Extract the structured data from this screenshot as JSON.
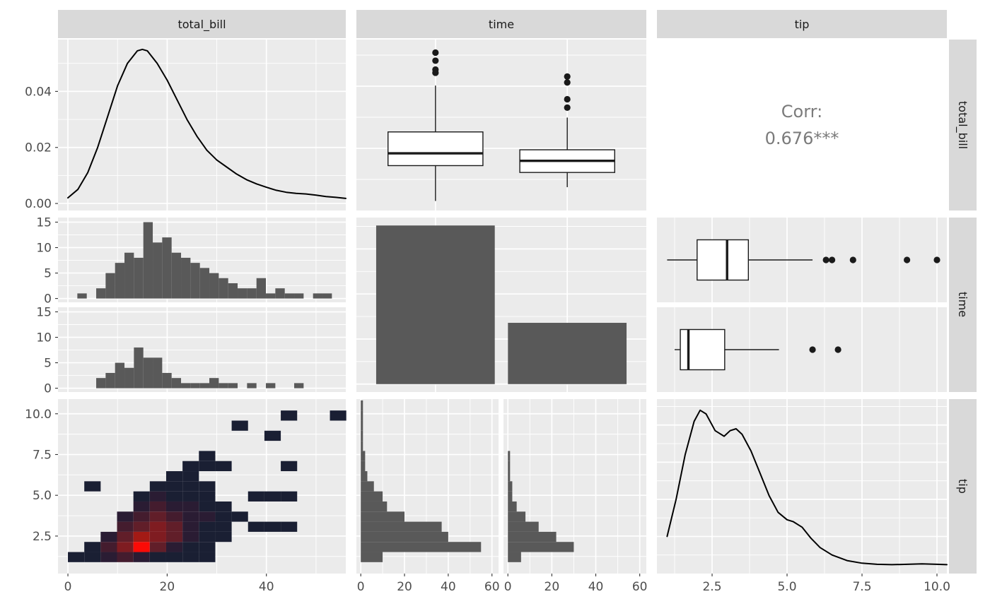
{
  "figure": {
    "bg": "#FFFFFF",
    "panel_bg": "#EBEBEB",
    "strip_bg": "#D9D9D9",
    "strip_text_color": "#1A1A1A",
    "grid_color": "#FFFFFF",
    "tick_label_color": "#4D4D4D",
    "tick_mark_color": "#333333",
    "hist_fill": "#595959",
    "box_stroke": "#1A1A1A",
    "density_stroke": "#000000",
    "corr_text_color": "#7B7B7B"
  },
  "strips": {
    "top": [
      "total_bill",
      "time",
      "tip"
    ],
    "right": [
      "total_bill",
      "time",
      "tip"
    ]
  },
  "chart_data": [
    {
      "id": "p11_density_total_bill",
      "type": "density",
      "title": "density of total_bill",
      "xlim": [
        -2,
        56
      ],
      "ylim": [
        -0.0025,
        0.0585
      ],
      "x_ticks": {
        "values": [
          0,
          20,
          40
        ]
      },
      "y_ticks": {
        "values": [
          0,
          0.02,
          0.04
        ],
        "labels": [
          "0.00",
          "0.02",
          "0.04"
        ]
      },
      "margins": {
        "l": 74,
        "b": 0
      },
      "points": [
        [
          0,
          0.002
        ],
        [
          2,
          0.005
        ],
        [
          4,
          0.011
        ],
        [
          6,
          0.02
        ],
        [
          8,
          0.031
        ],
        [
          10,
          0.042
        ],
        [
          12,
          0.05
        ],
        [
          14,
          0.0545
        ],
        [
          15,
          0.055
        ],
        [
          16,
          0.0545
        ],
        [
          18,
          0.05
        ],
        [
          20,
          0.044
        ],
        [
          22,
          0.037
        ],
        [
          24,
          0.03
        ],
        [
          26,
          0.024
        ],
        [
          28,
          0.019
        ],
        [
          30,
          0.0155
        ],
        [
          32,
          0.013
        ],
        [
          34,
          0.0105
        ],
        [
          36,
          0.0085
        ],
        [
          38,
          0.007
        ],
        [
          40,
          0.0058
        ],
        [
          42,
          0.0047
        ],
        [
          44,
          0.004
        ],
        [
          46,
          0.0036
        ],
        [
          48,
          0.0034
        ],
        [
          50,
          0.003
        ],
        [
          52,
          0.0025
        ],
        [
          54,
          0.0022
        ],
        [
          56,
          0.0018
        ]
      ]
    },
    {
      "id": "p12_box_total_bill_by_time",
      "type": "boxplot",
      "orientation": "v",
      "title": "total_bill by time",
      "x_discrete": true,
      "xlim": [
        0.4,
        2.6
      ],
      "ylim": [
        0,
        55
      ],
      "x_ticks": {
        "values": [
          1,
          2
        ]
      },
      "y_ticks": {
        "values": [
          0,
          20,
          40
        ]
      },
      "margins": {
        "l": 0,
        "b": 0
      },
      "boxes": [
        {
          "pos": 1,
          "width": 0.72,
          "min": 3.07,
          "q1": 14.44,
          "med": 18.39,
          "q3": 25.28,
          "max": 40.2,
          "outliers": [
            44.3,
            45.35,
            48.2,
            50.8
          ]
        },
        {
          "pos": 2,
          "width": 0.72,
          "min": 7.51,
          "q1": 12.24,
          "med": 15.97,
          "q3": 19.53,
          "max": 29.9,
          "outliers": [
            33.1,
            35.8,
            41.2,
            43.1
          ]
        }
      ]
    },
    {
      "id": "p13_corr",
      "type": "corr",
      "title": "correlation of total_bill and tip",
      "lines": [
        "Corr:",
        "0.676***"
      ]
    },
    {
      "id": "p21a_hist_total_bill_dinner",
      "type": "histogram",
      "orientation": "v",
      "title": "total_bill histogram, facet 1",
      "xlim": [
        -2,
        56
      ],
      "ylim": [
        -0.75,
        15.9
      ],
      "x_ticks": {
        "values": [
          0,
          20,
          40
        ]
      },
      "y_ticks": {
        "values": [
          0,
          5,
          10,
          15
        ],
        "labels": [
          "0",
          "5",
          "10",
          "15"
        ]
      },
      "margins": {
        "l": 74,
        "b": 0
      },
      "bins": {
        "start": 1.9,
        "width": 1.9,
        "counts": [
          1,
          0,
          2,
          5,
          7,
          9,
          8,
          15,
          11,
          12,
          9,
          8,
          7,
          6,
          5,
          4,
          3,
          2,
          2,
          4,
          1,
          2,
          1,
          1,
          0,
          1,
          1
        ]
      }
    },
    {
      "id": "p21b_hist_total_bill_lunch",
      "type": "histogram",
      "orientation": "v",
      "title": "total_bill histogram, facet 2",
      "xlim": [
        -2,
        56
      ],
      "ylim": [
        -0.75,
        15.9
      ],
      "x_ticks": {
        "values": [
          0,
          20,
          40
        ]
      },
      "y_ticks": {
        "values": [
          0,
          5,
          10,
          15
        ],
        "labels": [
          "0",
          "5",
          "10",
          "15"
        ]
      },
      "margins": {
        "l": 74,
        "b": 0
      },
      "bins": {
        "start": 1.9,
        "width": 1.9,
        "counts": [
          0,
          0,
          2,
          3,
          5,
          4,
          8,
          6,
          6,
          3,
          2,
          1,
          1,
          1,
          2,
          1,
          1,
          0,
          1,
          0,
          1,
          0,
          0,
          1,
          0,
          0,
          0
        ]
      }
    },
    {
      "id": "p22_bar_time",
      "type": "bar",
      "title": "counts of time levels",
      "x_discrete": true,
      "xlim": [
        0.4,
        2.6
      ],
      "ylim": [
        -8.8,
        184.8
      ],
      "x_ticks": {
        "values": [
          1,
          2
        ]
      },
      "y_ticks": {
        "values": [
          0,
          50,
          100,
          150
        ]
      },
      "margins": {
        "l": 0,
        "b": 0
      },
      "bars": [
        {
          "x": 1,
          "value": 176,
          "width": 0.9
        },
        {
          "x": 2,
          "value": 68,
          "width": 0.9
        }
      ]
    },
    {
      "id": "p23a_box_tip_dinner",
      "type": "boxplot",
      "orientation": "h",
      "title": "tip by time, facet 1",
      "y_discrete": true,
      "xlim": [
        0.66,
        10.33
      ],
      "ylim": [
        0,
        2
      ],
      "x_ticks": {
        "values": [
          2.5,
          5,
          7.5,
          10
        ]
      },
      "margins": {
        "l": 0,
        "b": 0
      },
      "boxes": [
        {
          "pos": 1,
          "width": 0.95,
          "min": 1.0,
          "q1": 2.0,
          "med": 3.0,
          "q3": 3.71,
          "max": 5.85,
          "outliers": [
            6.3,
            6.5,
            7.2,
            9.0,
            10.0
          ]
        }
      ]
    },
    {
      "id": "p23b_box_tip_lunch",
      "type": "boxplot",
      "orientation": "h",
      "title": "tip by time, facet 2",
      "y_discrete": true,
      "xlim": [
        0.66,
        10.33
      ],
      "ylim": [
        0,
        2
      ],
      "x_ticks": {
        "values": [
          2.5,
          5,
          7.5,
          10
        ]
      },
      "margins": {
        "l": 0,
        "b": 0
      },
      "boxes": [
        {
          "pos": 1,
          "width": 0.95,
          "min": 1.25,
          "q1": 1.44,
          "med": 1.71,
          "q3": 2.92,
          "max": 4.73,
          "outliers": [
            5.85,
            6.7
          ]
        }
      ]
    },
    {
      "id": "p31_heat_total_bill_tip",
      "type": "heatmap",
      "title": "2d bins of total_bill vs tip",
      "xlim": [
        -2,
        56
      ],
      "ylim": [
        0.2,
        10.9
      ],
      "x_ticks": {
        "values": [
          0,
          20,
          40
        ],
        "labels": [
          "0",
          "20",
          "40"
        ]
      },
      "y_ticks": {
        "values": [
          2.5,
          5,
          7.5,
          10
        ],
        "labels": [
          "2.5",
          "5.0",
          "7.5",
          "10.0"
        ]
      },
      "margins": {
        "l": 74,
        "b": 34
      },
      "cell_w": 3.3,
      "cell_h": 0.62,
      "palette": [
        "#1a1f33",
        "#2a1c33",
        "#441c2e",
        "#611e29",
        "#7f1c21",
        "#a31a15",
        "#fb0b06"
      ],
      "cells": [
        [
          0,
          0.9,
          0
        ],
        [
          3.3,
          0.9,
          0
        ],
        [
          6.6,
          0.9,
          1
        ],
        [
          9.9,
          0.9,
          2
        ],
        [
          13.2,
          0.9,
          1
        ],
        [
          16.5,
          0.9,
          0
        ],
        [
          19.8,
          0.9,
          0
        ],
        [
          23.1,
          0.9,
          0
        ],
        [
          26.4,
          0.9,
          0
        ],
        [
          3.3,
          1.52,
          0
        ],
        [
          6.6,
          1.52,
          2
        ],
        [
          9.9,
          1.52,
          4
        ],
        [
          13.2,
          1.52,
          6
        ],
        [
          16.5,
          1.52,
          3
        ],
        [
          19.8,
          1.52,
          1
        ],
        [
          23.1,
          1.52,
          0
        ],
        [
          26.4,
          1.52,
          0
        ],
        [
          6.6,
          2.14,
          1
        ],
        [
          9.9,
          2.14,
          3
        ],
        [
          13.2,
          2.14,
          5
        ],
        [
          16.5,
          2.14,
          4
        ],
        [
          19.8,
          2.14,
          3
        ],
        [
          23.1,
          2.14,
          1
        ],
        [
          26.4,
          2.14,
          0
        ],
        [
          29.7,
          2.14,
          0
        ],
        [
          9.9,
          2.76,
          2
        ],
        [
          13.2,
          2.76,
          3
        ],
        [
          16.5,
          2.76,
          4
        ],
        [
          19.8,
          2.76,
          3
        ],
        [
          23.1,
          2.76,
          1
        ],
        [
          26.4,
          2.76,
          0
        ],
        [
          29.7,
          2.76,
          0
        ],
        [
          36.3,
          2.76,
          0
        ],
        [
          39.6,
          2.76,
          0
        ],
        [
          42.9,
          2.76,
          0
        ],
        [
          9.9,
          3.38,
          1
        ],
        [
          13.2,
          3.38,
          2
        ],
        [
          16.5,
          3.38,
          3
        ],
        [
          19.8,
          3.38,
          2
        ],
        [
          23.1,
          3.38,
          1
        ],
        [
          26.4,
          3.38,
          1
        ],
        [
          29.7,
          3.38,
          0
        ],
        [
          33,
          3.38,
          0
        ],
        [
          13.2,
          4,
          1
        ],
        [
          16.5,
          4,
          2
        ],
        [
          19.8,
          4,
          1
        ],
        [
          23.1,
          4,
          1
        ],
        [
          26.4,
          4,
          0
        ],
        [
          29.7,
          4,
          0
        ],
        [
          13.2,
          4.62,
          0
        ],
        [
          16.5,
          4.62,
          1
        ],
        [
          19.8,
          4.62,
          0
        ],
        [
          23.1,
          4.62,
          0
        ],
        [
          26.4,
          4.62,
          0
        ],
        [
          36.3,
          4.62,
          0
        ],
        [
          39.6,
          4.62,
          0
        ],
        [
          42.9,
          4.62,
          0
        ],
        [
          3.3,
          5.24,
          0
        ],
        [
          16.5,
          5.24,
          0
        ],
        [
          19.8,
          5.24,
          0
        ],
        [
          23.1,
          5.24,
          0
        ],
        [
          26.4,
          5.24,
          0
        ],
        [
          19.8,
          5.86,
          0
        ],
        [
          23.1,
          5.86,
          0
        ],
        [
          23.1,
          6.48,
          0
        ],
        [
          26.4,
          6.48,
          0
        ],
        [
          29.7,
          6.48,
          0
        ],
        [
          42.9,
          6.48,
          0
        ],
        [
          26.4,
          7.1,
          0
        ],
        [
          39.6,
          8.34,
          0
        ],
        [
          33,
          8.96,
          0
        ],
        [
          42.9,
          9.58,
          0
        ],
        [
          52.8,
          9.58,
          0
        ]
      ]
    },
    {
      "id": "p32a_hist_tip_dinner",
      "type": "histogram",
      "orientation": "h",
      "title": "tip histogram, facet 1",
      "xlim": [
        -2,
        63
      ],
      "ylim": [
        0.2,
        10.9
      ],
      "x_ticks": {
        "values": [
          0,
          20,
          40,
          60
        ],
        "labels": [
          "0",
          "20",
          "40",
          "60"
        ]
      },
      "y_ticks": {
        "values": [
          2.5,
          5,
          7.5,
          10
        ]
      },
      "margins": {
        "l": 0,
        "b": 34
      },
      "bins": {
        "start": 0.9,
        "width": 0.62,
        "counts": [
          10,
          55,
          40,
          37,
          20,
          12,
          10,
          6,
          3,
          2,
          2,
          1,
          1,
          1,
          1,
          1
        ]
      }
    },
    {
      "id": "p32b_hist_tip_lunch",
      "type": "histogram",
      "orientation": "h",
      "title": "tip histogram, facet 2",
      "xlim": [
        -2,
        63
      ],
      "ylim": [
        0.2,
        10.9
      ],
      "x_ticks": {
        "values": [
          0,
          20,
          40,
          60
        ],
        "labels": [
          "0",
          "20",
          "40",
          "60"
        ]
      },
      "y_ticks": {
        "values": [
          2.5,
          5,
          7.5,
          10
        ]
      },
      "margins": {
        "l": 0,
        "b": 34
      },
      "bins": {
        "start": 0.9,
        "width": 0.62,
        "counts": [
          6,
          30,
          22,
          14,
          8,
          4,
          2,
          2,
          1,
          1,
          1
        ]
      }
    },
    {
      "id": "p33_density_tip",
      "type": "density",
      "title": "density of tip",
      "xlim": [
        0.66,
        10.33
      ],
      "ylim": [
        0,
        0.47
      ],
      "x_ticks": {
        "values": [
          2.5,
          5,
          7.5,
          10
        ],
        "labels": [
          "2.5",
          "5.0",
          "7.5",
          "10.0"
        ]
      },
      "y_ticks": {
        "values": [
          0.1,
          0.2,
          0.3,
          0.4
        ]
      },
      "margins": {
        "l": 0,
        "b": 34
      },
      "points": [
        [
          1.0,
          0.1
        ],
        [
          1.3,
          0.2
        ],
        [
          1.6,
          0.32
        ],
        [
          1.9,
          0.41
        ],
        [
          2.1,
          0.44
        ],
        [
          2.3,
          0.43
        ],
        [
          2.6,
          0.385
        ],
        [
          2.9,
          0.37
        ],
        [
          3.1,
          0.385
        ],
        [
          3.3,
          0.39
        ],
        [
          3.5,
          0.375
        ],
        [
          3.8,
          0.33
        ],
        [
          4.1,
          0.27
        ],
        [
          4.4,
          0.21
        ],
        [
          4.7,
          0.165
        ],
        [
          5.0,
          0.145
        ],
        [
          5.2,
          0.14
        ],
        [
          5.5,
          0.125
        ],
        [
          5.8,
          0.095
        ],
        [
          6.1,
          0.07
        ],
        [
          6.5,
          0.05
        ],
        [
          7.0,
          0.035
        ],
        [
          7.5,
          0.028
        ],
        [
          8.0,
          0.025
        ],
        [
          8.5,
          0.024
        ],
        [
          9.0,
          0.025
        ],
        [
          9.5,
          0.026
        ],
        [
          10.0,
          0.025
        ],
        [
          10.33,
          0.024
        ]
      ]
    }
  ]
}
